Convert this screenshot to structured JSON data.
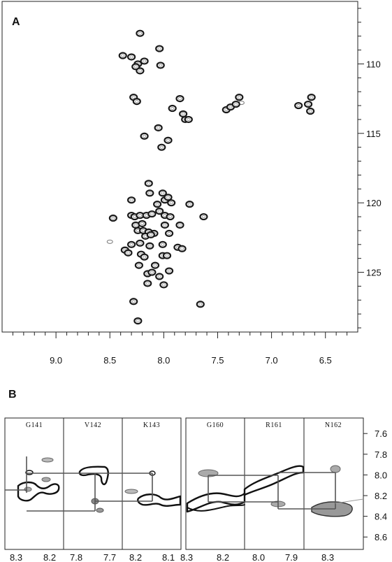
{
  "chart_data": [
    {
      "type": "scatter",
      "panel_label": "A",
      "xlim": [
        9.5,
        6.2
      ],
      "ylim": [
        105.5,
        129.3
      ],
      "x_ticks": [
        9.0,
        8.5,
        8.0,
        7.5,
        7.0,
        6.5
      ],
      "x_tick_labels": [
        "9.0",
        "8.5",
        "8.0",
        "7.5",
        "7.0",
        "6.5"
      ],
      "y_ticks": [
        110,
        115,
        120,
        125
      ],
      "y_tick_labels": [
        "110",
        "115",
        "120",
        "125"
      ],
      "x_axis": "reversed",
      "y_axis": "reversed",
      "y_axis_side": "right",
      "grid": false,
      "peaks": [
        {
          "x": 8.22,
          "y": 107.8
        },
        {
          "x": 8.04,
          "y": 108.9
        },
        {
          "x": 8.38,
          "y": 109.4
        },
        {
          "x": 8.3,
          "y": 109.5
        },
        {
          "x": 8.18,
          "y": 109.8
        },
        {
          "x": 8.24,
          "y": 110.0
        },
        {
          "x": 8.26,
          "y": 110.2
        },
        {
          "x": 8.22,
          "y": 110.5
        },
        {
          "x": 8.03,
          "y": 110.1
        },
        {
          "x": 8.28,
          "y": 112.4
        },
        {
          "x": 8.25,
          "y": 112.7
        },
        {
          "x": 7.85,
          "y": 112.5
        },
        {
          "x": 7.92,
          "y": 113.2
        },
        {
          "x": 7.82,
          "y": 113.6
        },
        {
          "x": 7.8,
          "y": 114.0
        },
        {
          "x": 7.77,
          "y": 114.0
        },
        {
          "x": 7.42,
          "y": 113.3
        },
        {
          "x": 7.38,
          "y": 113.1
        },
        {
          "x": 7.33,
          "y": 112.9
        },
        {
          "x": 7.3,
          "y": 112.4
        },
        {
          "x": 6.75,
          "y": 113.0
        },
        {
          "x": 6.66,
          "y": 112.9
        },
        {
          "x": 6.63,
          "y": 112.4
        },
        {
          "x": 6.64,
          "y": 113.4
        },
        {
          "x": 8.05,
          "y": 114.6
        },
        {
          "x": 8.18,
          "y": 115.2
        },
        {
          "x": 7.96,
          "y": 115.5
        },
        {
          "x": 8.02,
          "y": 116.0
        },
        {
          "x": 8.14,
          "y": 118.6
        },
        {
          "x": 8.13,
          "y": 119.3
        },
        {
          "x": 8.3,
          "y": 119.8
        },
        {
          "x": 8.01,
          "y": 119.3
        },
        {
          "x": 7.99,
          "y": 119.8
        },
        {
          "x": 7.96,
          "y": 119.6
        },
        {
          "x": 7.93,
          "y": 120.0
        },
        {
          "x": 8.06,
          "y": 120.1
        },
        {
          "x": 7.76,
          "y": 120.1
        },
        {
          "x": 8.47,
          "y": 121.1
        },
        {
          "x": 8.3,
          "y": 120.9
        },
        {
          "x": 8.27,
          "y": 121.0
        },
        {
          "x": 8.22,
          "y": 120.9
        },
        {
          "x": 8.16,
          "y": 120.9
        },
        {
          "x": 8.11,
          "y": 120.8
        },
        {
          "x": 8.04,
          "y": 120.6
        },
        {
          "x": 7.99,
          "y": 120.9
        },
        {
          "x": 7.94,
          "y": 121.0
        },
        {
          "x": 7.63,
          "y": 121.0
        },
        {
          "x": 8.26,
          "y": 121.6
        },
        {
          "x": 8.2,
          "y": 121.5
        },
        {
          "x": 7.99,
          "y": 121.6
        },
        {
          "x": 7.85,
          "y": 121.6
        },
        {
          "x": 8.24,
          "y": 122.0
        },
        {
          "x": 8.19,
          "y": 122.0
        },
        {
          "x": 8.14,
          "y": 122.1
        },
        {
          "x": 8.09,
          "y": 122.2
        },
        {
          "x": 8.17,
          "y": 122.4
        },
        {
          "x": 8.12,
          "y": 122.3
        },
        {
          "x": 7.95,
          "y": 122.2
        },
        {
          "x": 8.3,
          "y": 123.0
        },
        {
          "x": 8.22,
          "y": 122.9
        },
        {
          "x": 8.13,
          "y": 123.1
        },
        {
          "x": 8.01,
          "y": 123.0
        },
        {
          "x": 7.87,
          "y": 123.2
        },
        {
          "x": 7.83,
          "y": 123.3
        },
        {
          "x": 8.36,
          "y": 123.4
        },
        {
          "x": 8.33,
          "y": 123.6
        },
        {
          "x": 8.21,
          "y": 123.7
        },
        {
          "x": 8.18,
          "y": 123.9
        },
        {
          "x": 8.01,
          "y": 123.8
        },
        {
          "x": 7.97,
          "y": 123.8
        },
        {
          "x": 8.23,
          "y": 124.5
        },
        {
          "x": 8.08,
          "y": 124.5
        },
        {
          "x": 7.95,
          "y": 124.9
        },
        {
          "x": 8.15,
          "y": 125.1
        },
        {
          "x": 8.11,
          "y": 125.0
        },
        {
          "x": 8.04,
          "y": 125.3
        },
        {
          "x": 8.15,
          "y": 125.8
        },
        {
          "x": 8.0,
          "y": 125.9
        },
        {
          "x": 7.66,
          "y": 127.3
        },
        {
          "x": 8.28,
          "y": 127.1
        },
        {
          "x": 8.24,
          "y": 128.5
        }
      ],
      "weak_peaks": [
        {
          "x": 8.5,
          "y": 122.8
        },
        {
          "x": 8.29,
          "y": 127.1
        },
        {
          "x": 7.28,
          "y": 112.8
        }
      ]
    },
    {
      "type": "line",
      "panel_label": "B",
      "ylim": [
        7.45,
        8.72
      ],
      "y_ticks": [
        7.6,
        7.8,
        8.0,
        8.2,
        8.4,
        8.6
      ],
      "y_tick_labels": [
        "7.6",
        "7.8",
        "8.0",
        "8.2",
        "8.4",
        "8.6"
      ],
      "y_axis": "reversed",
      "y_axis_side": "right",
      "strips": [
        {
          "label": "G141",
          "xlim": [
            8.34,
            8.16
          ],
          "x_ticks": [
            8.3,
            8.2
          ],
          "x_tick_labels": [
            "8.3",
            "8.2"
          ]
        },
        {
          "label": "V142",
          "xlim": [
            7.88,
            7.68
          ],
          "x_ticks": [
            7.8,
            7.7
          ],
          "x_tick_labels": [
            "7.8",
            "7.7"
          ]
        },
        {
          "label": "K143",
          "xlim": [
            8.25,
            8.08
          ],
          "x_ticks": [
            8.2,
            8.1
          ],
          "x_tick_labels": [
            "8.2",
            "8.1"
          ]
        },
        {
          "label": "G160",
          "xlim": [
            8.32,
            8.13
          ],
          "x_ticks": [
            8.3,
            8.2
          ],
          "x_tick_labels": [
            "8.3",
            "8.2"
          ]
        },
        {
          "label": "R161",
          "xlim": [
            8.08,
            7.86
          ],
          "x_ticks": [
            8.0,
            7.9
          ],
          "x_tick_labels": [
            "8.0",
            "7.9"
          ]
        },
        {
          "label": "N162",
          "xlim": [
            8.42,
            8.2
          ],
          "x_ticks": [
            8.3
          ],
          "x_tick_labels": [
            "8.3"
          ]
        }
      ]
    }
  ]
}
